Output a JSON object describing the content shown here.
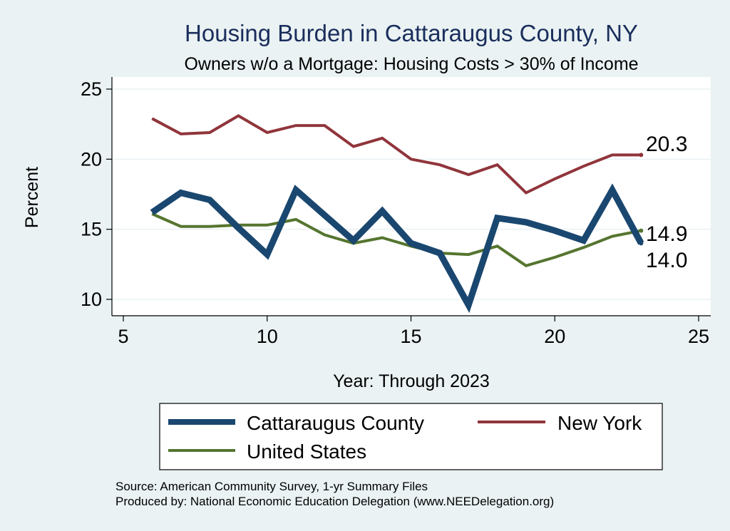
{
  "chart_data": {
    "type": "line",
    "title": "Housing Burden in Cattaraugus County, NY",
    "subtitle": "Owners w/o a Mortgage: Housing Costs > 30% of Income",
    "xlabel": "Year: Through 2023",
    "ylabel": "Percent",
    "xlim": [
      5,
      25
    ],
    "ylim": [
      10,
      25
    ],
    "x_ticks": [
      5,
      10,
      15,
      20,
      25
    ],
    "y_ticks": [
      10,
      15,
      20,
      25
    ],
    "grid": true,
    "series": [
      {
        "name": "Cattaraugus County",
        "color": "#1a476f",
        "x": [
          6,
          7,
          8,
          9,
          10,
          11,
          12,
          13,
          14,
          15,
          16,
          17,
          18,
          19,
          20,
          21,
          22,
          23
        ],
        "values": [
          16.2,
          17.6,
          17.1,
          15.1,
          13.2,
          17.8,
          16.0,
          14.2,
          16.3,
          14.0,
          13.3,
          9.6,
          15.8,
          15.5,
          14.9,
          14.2,
          17.8,
          14.0
        ],
        "end_label": "14.0"
      },
      {
        "name": "New York",
        "color": "#90353b",
        "x": [
          6,
          7,
          8,
          9,
          10,
          11,
          12,
          13,
          14,
          15,
          16,
          17,
          18,
          19,
          20,
          21,
          22,
          23
        ],
        "values": [
          22.9,
          21.8,
          21.9,
          23.1,
          21.9,
          22.4,
          22.4,
          20.9,
          21.5,
          20.0,
          19.6,
          18.9,
          19.6,
          17.6,
          18.6,
          19.5,
          20.3,
          20.3
        ],
        "end_label": "20.3"
      },
      {
        "name": "United States",
        "color": "#55752f",
        "x": [
          6,
          7,
          8,
          9,
          10,
          11,
          12,
          13,
          14,
          15,
          16,
          17,
          18,
          19,
          20,
          21,
          22,
          23
        ],
        "values": [
          16.1,
          15.2,
          15.2,
          15.3,
          15.3,
          15.7,
          14.6,
          14.0,
          14.4,
          13.8,
          13.3,
          13.2,
          13.8,
          12.4,
          13.0,
          13.7,
          14.5,
          14.9
        ],
        "end_label": "14.9"
      }
    ],
    "legend": {
      "placement": "bottom",
      "entries": [
        "Cattaraugus County",
        "New York",
        "United States"
      ]
    }
  },
  "notes": {
    "source": "Source: American Community Survey, 1-yr Summary Files",
    "produced_by": "Produced by: National Economic Education Delegation (www.NEEDelegation.org)"
  }
}
